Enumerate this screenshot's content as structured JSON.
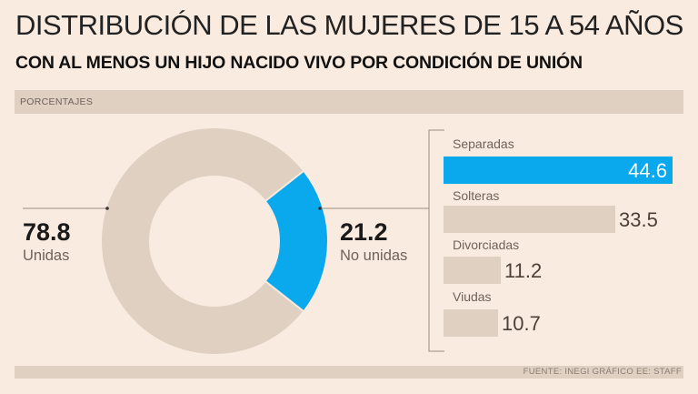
{
  "header": {
    "title": "DISTRIBUCIÓN DE LAS MUJERES DE 15 A 54 AÑOS",
    "subtitle": "CON AL MENOS UN HIJO NACIDO VIVO POR CONDICIÓN DE UNIÓN",
    "unit_label": "PORCENTAJES"
  },
  "footer": {
    "source": "FUENTE: INEGI   GRÁFICO EE: STAFF"
  },
  "colors": {
    "background": "#faebe0",
    "neutral": "#dfd0c2",
    "highlight": "#0aa8ec"
  },
  "chart_data": [
    {
      "type": "pie",
      "variant": "donut",
      "slices": [
        {
          "label": "Unidas",
          "value": 78.8,
          "value_text": "78.8"
        },
        {
          "label": "No unidas",
          "value": 21.2,
          "value_text": "21.2"
        }
      ],
      "highlight": "No unidas"
    },
    {
      "type": "bar",
      "orientation": "horizontal",
      "categories": [
        "Separadas",
        "Solteras",
        "Divorciadas",
        "Viudas"
      ],
      "values": [
        44.6,
        33.5,
        11.2,
        10.7
      ],
      "value_texts": [
        "44.6",
        "33.5",
        "11.2",
        "10.7"
      ],
      "highlight": "Separadas",
      "xlim": [
        0,
        44.6
      ]
    }
  ]
}
